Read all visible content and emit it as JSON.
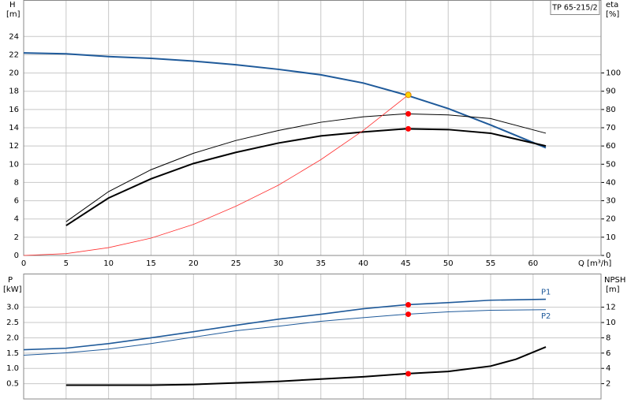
{
  "chart_data": [
    {
      "type": "line",
      "ylabel": "H",
      "yunit": "[m]",
      "y2label": "eta",
      "y2unit": "[%]",
      "xlabel": "Q [m³/h]",
      "label": "TP 65-215/2",
      "xlim": [
        0,
        68
      ],
      "xticks": [
        0,
        5,
        10,
        15,
        20,
        25,
        30,
        35,
        40,
        45,
        50,
        55,
        60
      ],
      "ylim": [
        0,
        28
      ],
      "yticks": [
        0,
        2,
        4,
        6,
        8,
        10,
        12,
        14,
        16,
        18,
        20,
        22,
        24
      ],
      "y2lim": [
        0,
        140
      ],
      "y2ticks": [
        0,
        10,
        20,
        30,
        40,
        50,
        60,
        70,
        80,
        90,
        100
      ],
      "grid": true,
      "series": [
        {
          "color": "#1f5a9a",
          "x": [
            0,
            5,
            10,
            15,
            20,
            25,
            30,
            35,
            40,
            45,
            50,
            55,
            61.5
          ],
          "values": [
            22.2,
            22.1,
            21.8,
            21.6,
            21.3,
            20.9,
            20.4,
            19.8,
            18.9,
            17.6,
            16.1,
            14.3,
            11.8
          ]
        },
        {
          "color": "#000000",
          "axis": "y2",
          "x": [
            5,
            10,
            15,
            20,
            25,
            30,
            35,
            40,
            45,
            50,
            55,
            61.5
          ],
          "values": [
            18.5,
            35,
            47,
            56,
            63,
            68.5,
            73,
            76,
            77.6,
            77,
            75,
            67
          ]
        },
        {
          "color": "#000000",
          "axis": "y2",
          "x": [
            5,
            10,
            15,
            20,
            25,
            30,
            35,
            40,
            45,
            50,
            55,
            61.5
          ],
          "values": [
            16.4,
            31.5,
            42,
            50.4,
            56.5,
            61.6,
            65.5,
            67.7,
            69.4,
            69,
            67,
            60
          ]
        },
        {
          "color": "#ff3030",
          "x": [
            0,
            5,
            10,
            15,
            20,
            25,
            30,
            35,
            40,
            45.3
          ],
          "values": [
            0,
            0.2,
            0.86,
            1.9,
            3.4,
            5.4,
            7.7,
            10.5,
            13.7,
            17.6
          ]
        }
      ],
      "points": [
        {
          "x": 45.3,
          "y": 17.6,
          "color": "#ffd700"
        },
        {
          "x": 45.3,
          "y": 77.6,
          "color": "#ff0000",
          "axis": "y2"
        },
        {
          "x": 45.3,
          "y": 69.4,
          "color": "#ff0000",
          "axis": "y2"
        }
      ]
    },
    {
      "type": "line",
      "ylabel": "P",
      "yunit": "[kW]",
      "y2label": "NPSH",
      "y2unit": "[m]",
      "xlim": [
        0,
        68
      ],
      "xticks": [
        0,
        5,
        10,
        15,
        20,
        25,
        30,
        35,
        40,
        45,
        50,
        55,
        60
      ],
      "ylim": [
        0,
        4.1
      ],
      "yticks": [
        0.5,
        {
          "value": 1,
          "label": "1.0"
        },
        1.5,
        {
          "value": 2,
          "label": "2.0"
        },
        2.5,
        {
          "value": 3,
          "label": "3.0"
        }
      ],
      "y2lim": [
        0,
        16.4
      ],
      "y2ticks": [
        2,
        4,
        6,
        8,
        10,
        12
      ],
      "grid": true,
      "series": [
        {
          "name": "P1",
          "color": "#1f5a9a",
          "x": [
            0,
            5,
            10,
            15,
            20,
            25,
            30,
            35,
            40,
            45,
            50,
            55,
            61.5
          ],
          "values": [
            1.61,
            1.66,
            1.81,
            2.0,
            2.2,
            2.41,
            2.61,
            2.77,
            2.95,
            3.08,
            3.15,
            3.23,
            3.26
          ]
        },
        {
          "name": "P2",
          "color": "#1f5a9a",
          "x": [
            0,
            5,
            10,
            15,
            20,
            25,
            30,
            35,
            40,
            45,
            50,
            55,
            61.5
          ],
          "values": [
            1.43,
            1.51,
            1.63,
            1.81,
            2.02,
            2.23,
            2.38,
            2.54,
            2.66,
            2.77,
            2.85,
            2.9,
            2.92
          ]
        },
        {
          "color": "#000000",
          "axis": "y2",
          "x": [
            5,
            15,
            20,
            25,
            30,
            35,
            40,
            45,
            50,
            55,
            58,
            61.5
          ],
          "values": [
            1.8,
            1.8,
            1.9,
            2.1,
            2.3,
            2.6,
            2.9,
            3.3,
            3.6,
            4.3,
            5.2,
            6.8
          ]
        }
      ],
      "points": [
        {
          "x": 45.3,
          "y": 3.08,
          "color": "#ff0000"
        },
        {
          "x": 45.3,
          "y": 2.77,
          "color": "#ff0000"
        },
        {
          "x": 45.3,
          "y": 3.3,
          "color": "#ff0000",
          "axis": "y2"
        }
      ]
    }
  ]
}
